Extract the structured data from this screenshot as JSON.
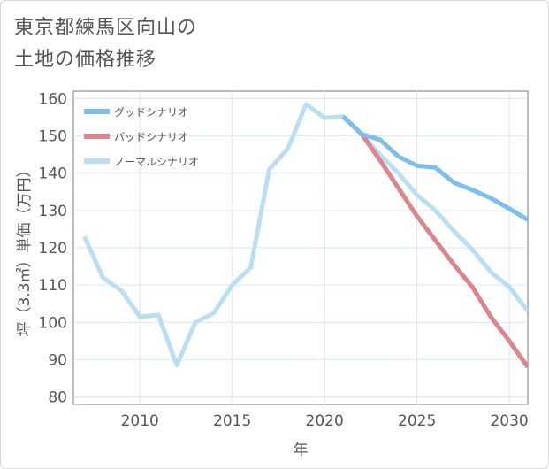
{
  "title": {
    "line1": "東京都練馬区向山の",
    "line2": "土地の価格推移"
  },
  "colors": {
    "good": "#7bbfef",
    "bad": "#de858c",
    "normal": "#badff0",
    "grid": "#d6e6f3",
    "axis": "#555555"
  },
  "chart_data": {
    "type": "line",
    "xlabel": "年",
    "ylabel": "坪（3.3㎡）単価（万円）",
    "xlim": [
      2006.4,
      2031
    ],
    "ylim": [
      78,
      162
    ],
    "xticks": [
      2010,
      2015,
      2020,
      2025,
      2030
    ],
    "yticks": [
      80,
      90,
      100,
      110,
      120,
      130,
      140,
      150,
      160
    ],
    "legend_position": "top-left",
    "grid": true,
    "series": [
      {
        "name": "グッドシナリオ",
        "color": "#7bbfef",
        "x": [
          2021,
          2022,
          2023,
          2024,
          2025,
          2026,
          2027,
          2028,
          2029,
          2030,
          2031
        ],
        "y": [
          155.2,
          150.5,
          149,
          144.5,
          142,
          141.5,
          137.5,
          135.5,
          133.3,
          130.5,
          127.5
        ]
      },
      {
        "name": "バッドシナリオ",
        "color": "#de858c",
        "x": [
          2021,
          2022,
          2023,
          2024,
          2025,
          2026,
          2027,
          2028,
          2029,
          2030,
          2031
        ],
        "y": [
          155.2,
          150.5,
          143.5,
          136,
          128.5,
          122,
          115.5,
          109.5,
          101.5,
          95,
          88
        ]
      },
      {
        "name": "ノーマルシナリオ",
        "color": "#badff0",
        "x": [
          2007,
          2008,
          2009,
          2010,
          2011,
          2012,
          2013,
          2014,
          2015,
          2016,
          2017,
          2018,
          2019,
          2020,
          2021,
          2022,
          2023,
          2024,
          2025,
          2026,
          2027,
          2028,
          2029,
          2030,
          2031
        ],
        "y": [
          123,
          112,
          108.5,
          101.5,
          102,
          88.5,
          100,
          102.5,
          110,
          114.7,
          141,
          146.5,
          158.5,
          154.8,
          155.2,
          150.5,
          145,
          140,
          134.2,
          130,
          124.5,
          119.5,
          113.5,
          109.5,
          103
        ]
      }
    ]
  }
}
